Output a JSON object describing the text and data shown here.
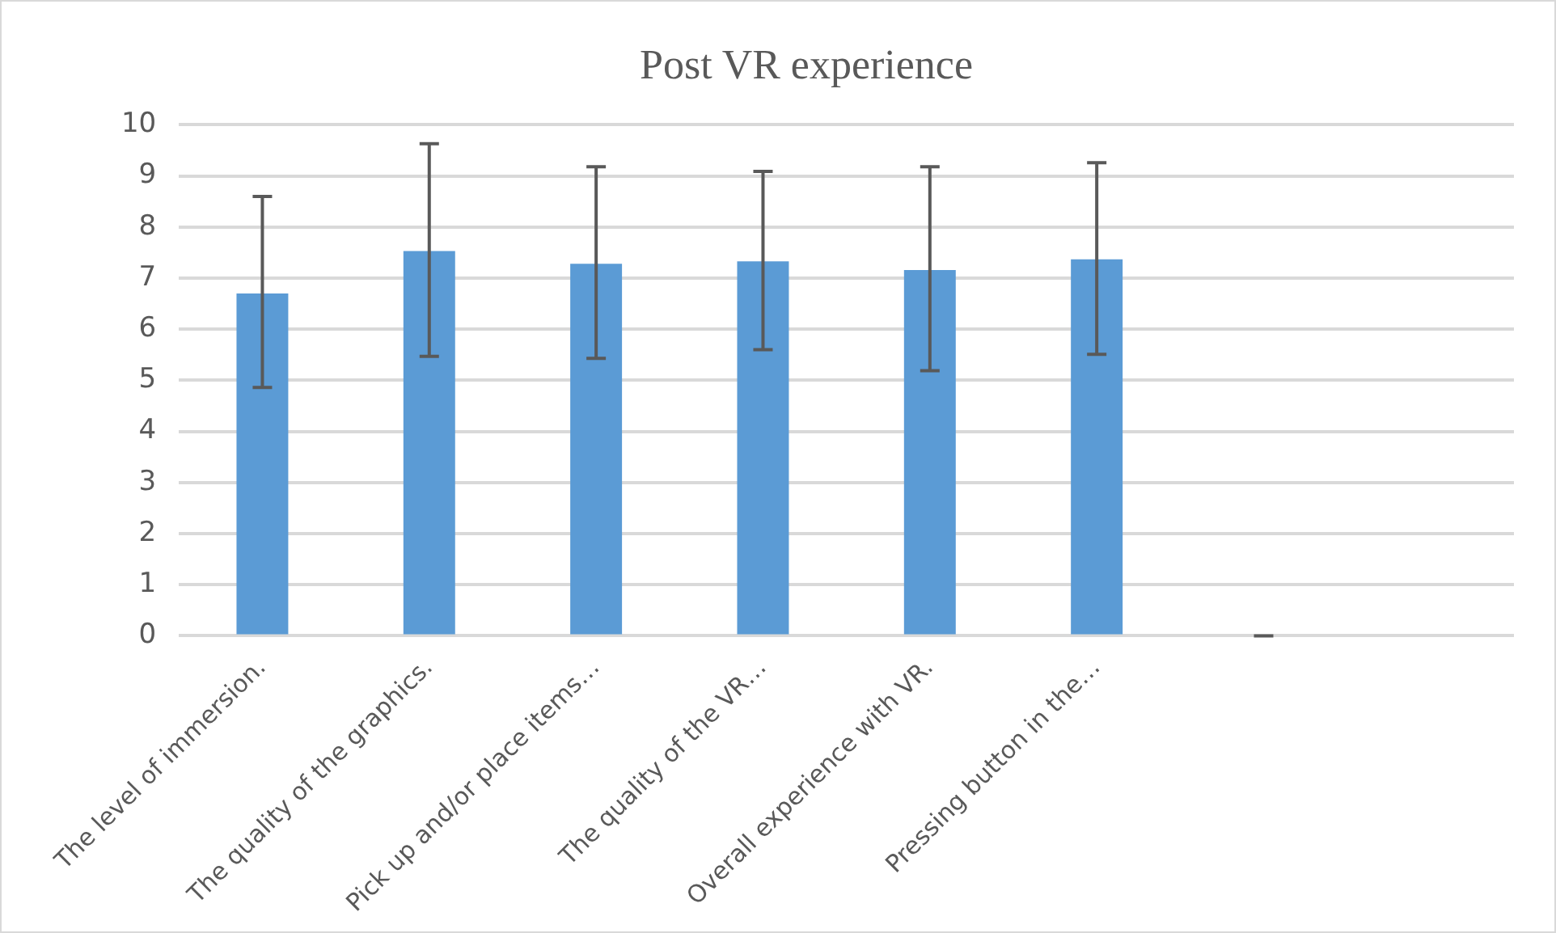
{
  "chart_data": {
    "type": "bar",
    "title": "Post VR experience",
    "categories": [
      "The level of immersion.",
      "The quality of the graphics.",
      "Pick up and/or place items…",
      "The quality of the VR…",
      "Overall experience with VR.",
      "Pressing button in the…",
      null,
      null
    ],
    "values": [
      6.7,
      7.53,
      7.28,
      7.33,
      7.16,
      7.37,
      0,
      null
    ],
    "errors": [
      [
        4.86,
        8.6
      ],
      [
        5.47,
        9.63
      ],
      [
        5.43,
        9.18
      ],
      [
        5.6,
        9.09
      ],
      [
        5.19,
        9.18
      ],
      [
        5.51,
        9.26
      ],
      [
        0,
        0
      ],
      null
    ],
    "color": "#5b9bd5",
    "ylim": [
      0,
      10
    ],
    "yticks": [
      0,
      1,
      2,
      3,
      4,
      5,
      6,
      7,
      8,
      9,
      10
    ],
    "grid": "y",
    "legend": false
  }
}
